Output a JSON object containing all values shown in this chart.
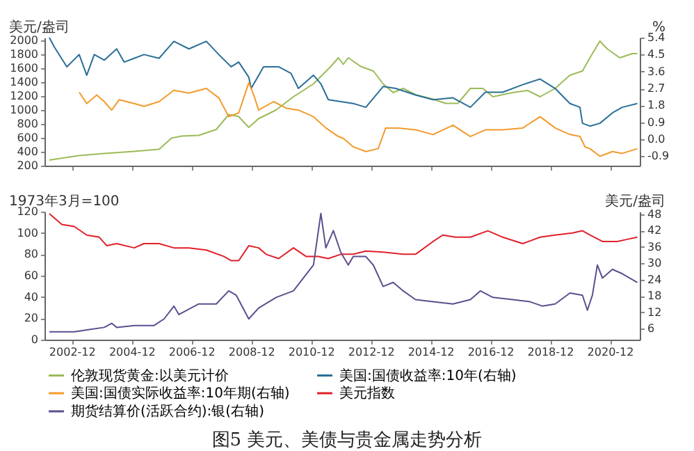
{
  "chart_data": [
    {
      "type": "line",
      "ylabel": "美元/盎司",
      "y2label": "%",
      "xlim": [
        "2002-01",
        "2021-12"
      ],
      "ylim": [
        200,
        2040
      ],
      "yticks": [
        200,
        400,
        600,
        800,
        1000,
        1200,
        1400,
        1600,
        1800,
        2000
      ],
      "y2lim": [
        -1.4,
        5.4
      ],
      "y2ticks": [
        -0.9,
        {
          "value": 0,
          "label": "0.0"
        },
        0.9,
        1.8,
        2.7,
        3.6,
        4.5,
        5.4
      ],
      "xticks": [
        "2002-12",
        "2004-12",
        "2006-12",
        "2008-12",
        "2010-12",
        "2012-12",
        "2014-12",
        "2016-12",
        "2018-12",
        "2020-12"
      ],
      "tick_labels": "y",
      "legend": "bottom",
      "series": [
        {
          "name": "伦敦现货黄金:以美元计价",
          "color": "#9bbb59",
          "x": [
            "2002-03",
            "2003-03",
            "2004-01",
            "2005-01",
            "2005-11",
            "2006-04",
            "2006-08",
            "2007-03",
            "2007-10",
            "2008-03",
            "2008-07",
            "2008-11",
            "2009-03",
            "2009-10",
            "2010-05",
            "2011-01",
            "2011-08",
            "2011-11",
            "2012-01",
            "2012-03",
            "2012-08",
            "2013-01",
            "2013-05",
            "2013-09",
            "2014-01",
            "2014-06",
            "2015-01",
            "2015-06",
            "2015-11",
            "2016-04",
            "2016-09",
            "2017-01",
            "2017-09",
            "2018-03",
            "2018-08",
            "2019-02",
            "2019-08",
            "2020-01",
            "2020-04",
            "2020-08",
            "2020-11",
            "2021-04",
            "2021-09",
            "2021-11"
          ],
          "values": [
            280,
            345,
            375,
            405,
            435,
            595,
            625,
            635,
            720,
            935,
            905,
            750,
            875,
            1000,
            1190,
            1375,
            1625,
            1750,
            1655,
            1750,
            1625,
            1560,
            1375,
            1250,
            1310,
            1220,
            1155,
            1095,
            1095,
            1310,
            1310,
            1190,
            1250,
            1280,
            1190,
            1310,
            1500,
            1560,
            1750,
            1990,
            1875,
            1750,
            1810,
            1810
          ]
        },
        {
          "name": "美国:国债收益率:10年(右轴)",
          "color": "#2a6f97",
          "axis": "y2",
          "x": [
            "2002-03",
            "2002-05",
            "2002-10",
            "2003-03",
            "2003-06",
            "2003-09",
            "2004-01",
            "2004-06",
            "2004-09",
            "2005-01",
            "2005-05",
            "2005-11",
            "2006-05",
            "2006-11",
            "2007-06",
            "2007-11",
            "2008-04",
            "2008-07",
            "2008-11",
            "2008-12",
            "2009-05",
            "2009-11",
            "2010-04",
            "2010-07",
            "2011-01",
            "2011-04",
            "2011-07",
            "2011-12",
            "2012-05",
            "2012-10",
            "2013-05",
            "2013-10",
            "2014-06",
            "2015-01",
            "2015-09",
            "2016-04",
            "2016-10",
            "2017-05",
            "2018-01",
            "2018-08",
            "2019-02",
            "2019-08",
            "2019-12",
            "2020-01",
            "2020-04",
            "2020-08",
            "2021-01",
            "2021-05",
            "2021-11"
          ],
          "values": [
            5.4,
            4.9,
            3.85,
            4.5,
            3.4,
            4.5,
            4.2,
            4.8,
            4.1,
            4.3,
            4.5,
            4.3,
            5.2,
            4.8,
            5.2,
            4.5,
            3.85,
            4.1,
            3.3,
            2.7,
            3.85,
            3.85,
            3.5,
            2.7,
            3.4,
            2.95,
            2.1,
            2.0,
            1.9,
            1.7,
            2.8,
            2.7,
            2.35,
            2.1,
            2.2,
            1.7,
            2.5,
            2.5,
            2.9,
            3.2,
            2.7,
            1.9,
            1.7,
            0.85,
            0.7,
            0.85,
            1.4,
            1.7,
            1.9
          ]
        },
        {
          "name": "美国:国债实际收益率:10年期(右轴)",
          "color": "#f39a2c",
          "axis": "y2",
          "x": [
            "2003-03",
            "2003-06",
            "2003-10",
            "2004-01",
            "2004-04",
            "2004-07",
            "2005-01",
            "2005-05",
            "2005-11",
            "2006-05",
            "2006-11",
            "2007-06",
            "2007-11",
            "2008-03",
            "2008-07",
            "2008-11",
            "2009-01",
            "2009-03",
            "2009-09",
            "2010-02",
            "2010-07",
            "2011-01",
            "2011-06",
            "2011-11",
            "2012-01",
            "2012-05",
            "2012-10",
            "2013-03",
            "2013-06",
            "2013-11",
            "2014-06",
            "2015-01",
            "2015-09",
            "2016-04",
            "2016-10",
            "2017-05",
            "2018-01",
            "2018-08",
            "2019-02",
            "2019-08",
            "2019-12",
            "2020-02",
            "2020-04",
            "2020-08",
            "2021-01",
            "2021-05",
            "2021-11"
          ],
          "values": [
            2.5,
            1.9,
            2.35,
            2.0,
            1.55,
            2.1,
            1.9,
            1.75,
            2.0,
            2.6,
            2.45,
            2.7,
            2.2,
            1.2,
            1.4,
            3.0,
            2.35,
            1.55,
            2.0,
            1.65,
            1.55,
            1.2,
            0.6,
            0.15,
            0.05,
            -0.4,
            -0.65,
            -0.5,
            0.6,
            0.6,
            0.5,
            0.25,
            0.75,
            0.15,
            0.5,
            0.5,
            0.6,
            1.2,
            0.6,
            0.25,
            0.15,
            -0.4,
            -0.5,
            -0.9,
            -0.65,
            -0.75,
            -0.5
          ]
        }
      ]
    },
    {
      "type": "line",
      "ylabel": "1973年3月=100",
      "y2label": "美元/盎司",
      "xlim": [
        "2002-01",
        "2021-12"
      ],
      "xticks": [
        "2002-12",
        "2004-12",
        "2006-12",
        "2008-12",
        "2010-12",
        "2012-12",
        "2014-12",
        "2016-12",
        "2018-12",
        "2020-12"
      ],
      "ylim": [
        0,
        120
      ],
      "yticks": [
        0,
        20,
        40,
        60,
        80,
        100,
        120
      ],
      "y2lim": [
        2,
        49
      ],
      "y2ticks": [
        6,
        12,
        18,
        24,
        30,
        36,
        42,
        48
      ],
      "legend": "bottom",
      "series": [
        {
          "name": "美元指数",
          "color": "#e0202a",
          "x": [
            "2002-03",
            "2002-08",
            "2003-01",
            "2003-06",
            "2003-11",
            "2004-02",
            "2004-06",
            "2005-01",
            "2005-05",
            "2005-11",
            "2006-05",
            "2006-11",
            "2007-06",
            "2008-01",
            "2008-04",
            "2008-07",
            "2008-11",
            "2009-03",
            "2009-06",
            "2009-11",
            "2010-05",
            "2010-10",
            "2011-03",
            "2011-07",
            "2011-12",
            "2012-05",
            "2012-10",
            "2013-05",
            "2014-01",
            "2014-06",
            "2015-01",
            "2015-05",
            "2015-10",
            "2016-04",
            "2016-11",
            "2017-05",
            "2018-01",
            "2018-08",
            "2019-02",
            "2019-09",
            "2020-01",
            "2020-04",
            "2020-09",
            "2021-03",
            "2021-07",
            "2021-11"
          ],
          "values": [
            118,
            108,
            106,
            98,
            96,
            88,
            90,
            86,
            90,
            90,
            86,
            86,
            84,
            78,
            74,
            74,
            88,
            86,
            80,
            76,
            86,
            78,
            78,
            76,
            80,
            80,
            83,
            82,
            80,
            80,
            92,
            98,
            96,
            96,
            102,
            96,
            90,
            96,
            98,
            100,
            102,
            98,
            92,
            92,
            94,
            96
          ]
        },
        {
          "name": "期货结算价(活跃合约):银(右轴)",
          "color": "#5b4f8f",
          "axis": "y2",
          "x": [
            "2002-03",
            "2003-01",
            "2003-07",
            "2004-01",
            "2004-04",
            "2004-06",
            "2005-01",
            "2005-09",
            "2006-01",
            "2006-05",
            "2006-07",
            "2007-03",
            "2007-10",
            "2008-03",
            "2008-06",
            "2008-11",
            "2009-03",
            "2009-10",
            "2010-05",
            "2011-01",
            "2011-04",
            "2011-06",
            "2011-09",
            "2011-12",
            "2012-03",
            "2012-05",
            "2012-10",
            "2013-01",
            "2013-05",
            "2013-09",
            "2014-01",
            "2014-06",
            "2015-01",
            "2015-09",
            "2016-04",
            "2016-08",
            "2017-01",
            "2017-09",
            "2018-04",
            "2018-09",
            "2019-02",
            "2019-08",
            "2020-01",
            "2020-03",
            "2020-05",
            "2020-07",
            "2020-09",
            "2021-01",
            "2021-05",
            "2021-11"
          ],
          "values": [
            4.9,
            4.9,
            5.7,
            6.5,
            8.0,
            6.5,
            7.2,
            7.2,
            9.6,
            14.3,
            11.2,
            15.1,
            15.1,
            19.9,
            18.3,
            9.6,
            13.6,
            17.5,
            19.9,
            29.4,
            48.3,
            35.7,
            42,
            34,
            29.4,
            32.5,
            32.5,
            29.4,
            21.5,
            23,
            19.9,
            16.7,
            15.9,
            15.1,
            16.7,
            19.9,
            17.5,
            16.7,
            15.9,
            14.3,
            15.1,
            19.1,
            18.3,
            12.8,
            18.3,
            29.4,
            24.6,
            27.8,
            26.2,
            23
          ]
        }
      ],
      "annotations": [
        "图5 美元、美债与贵金属走势分析"
      ]
    }
  ]
}
